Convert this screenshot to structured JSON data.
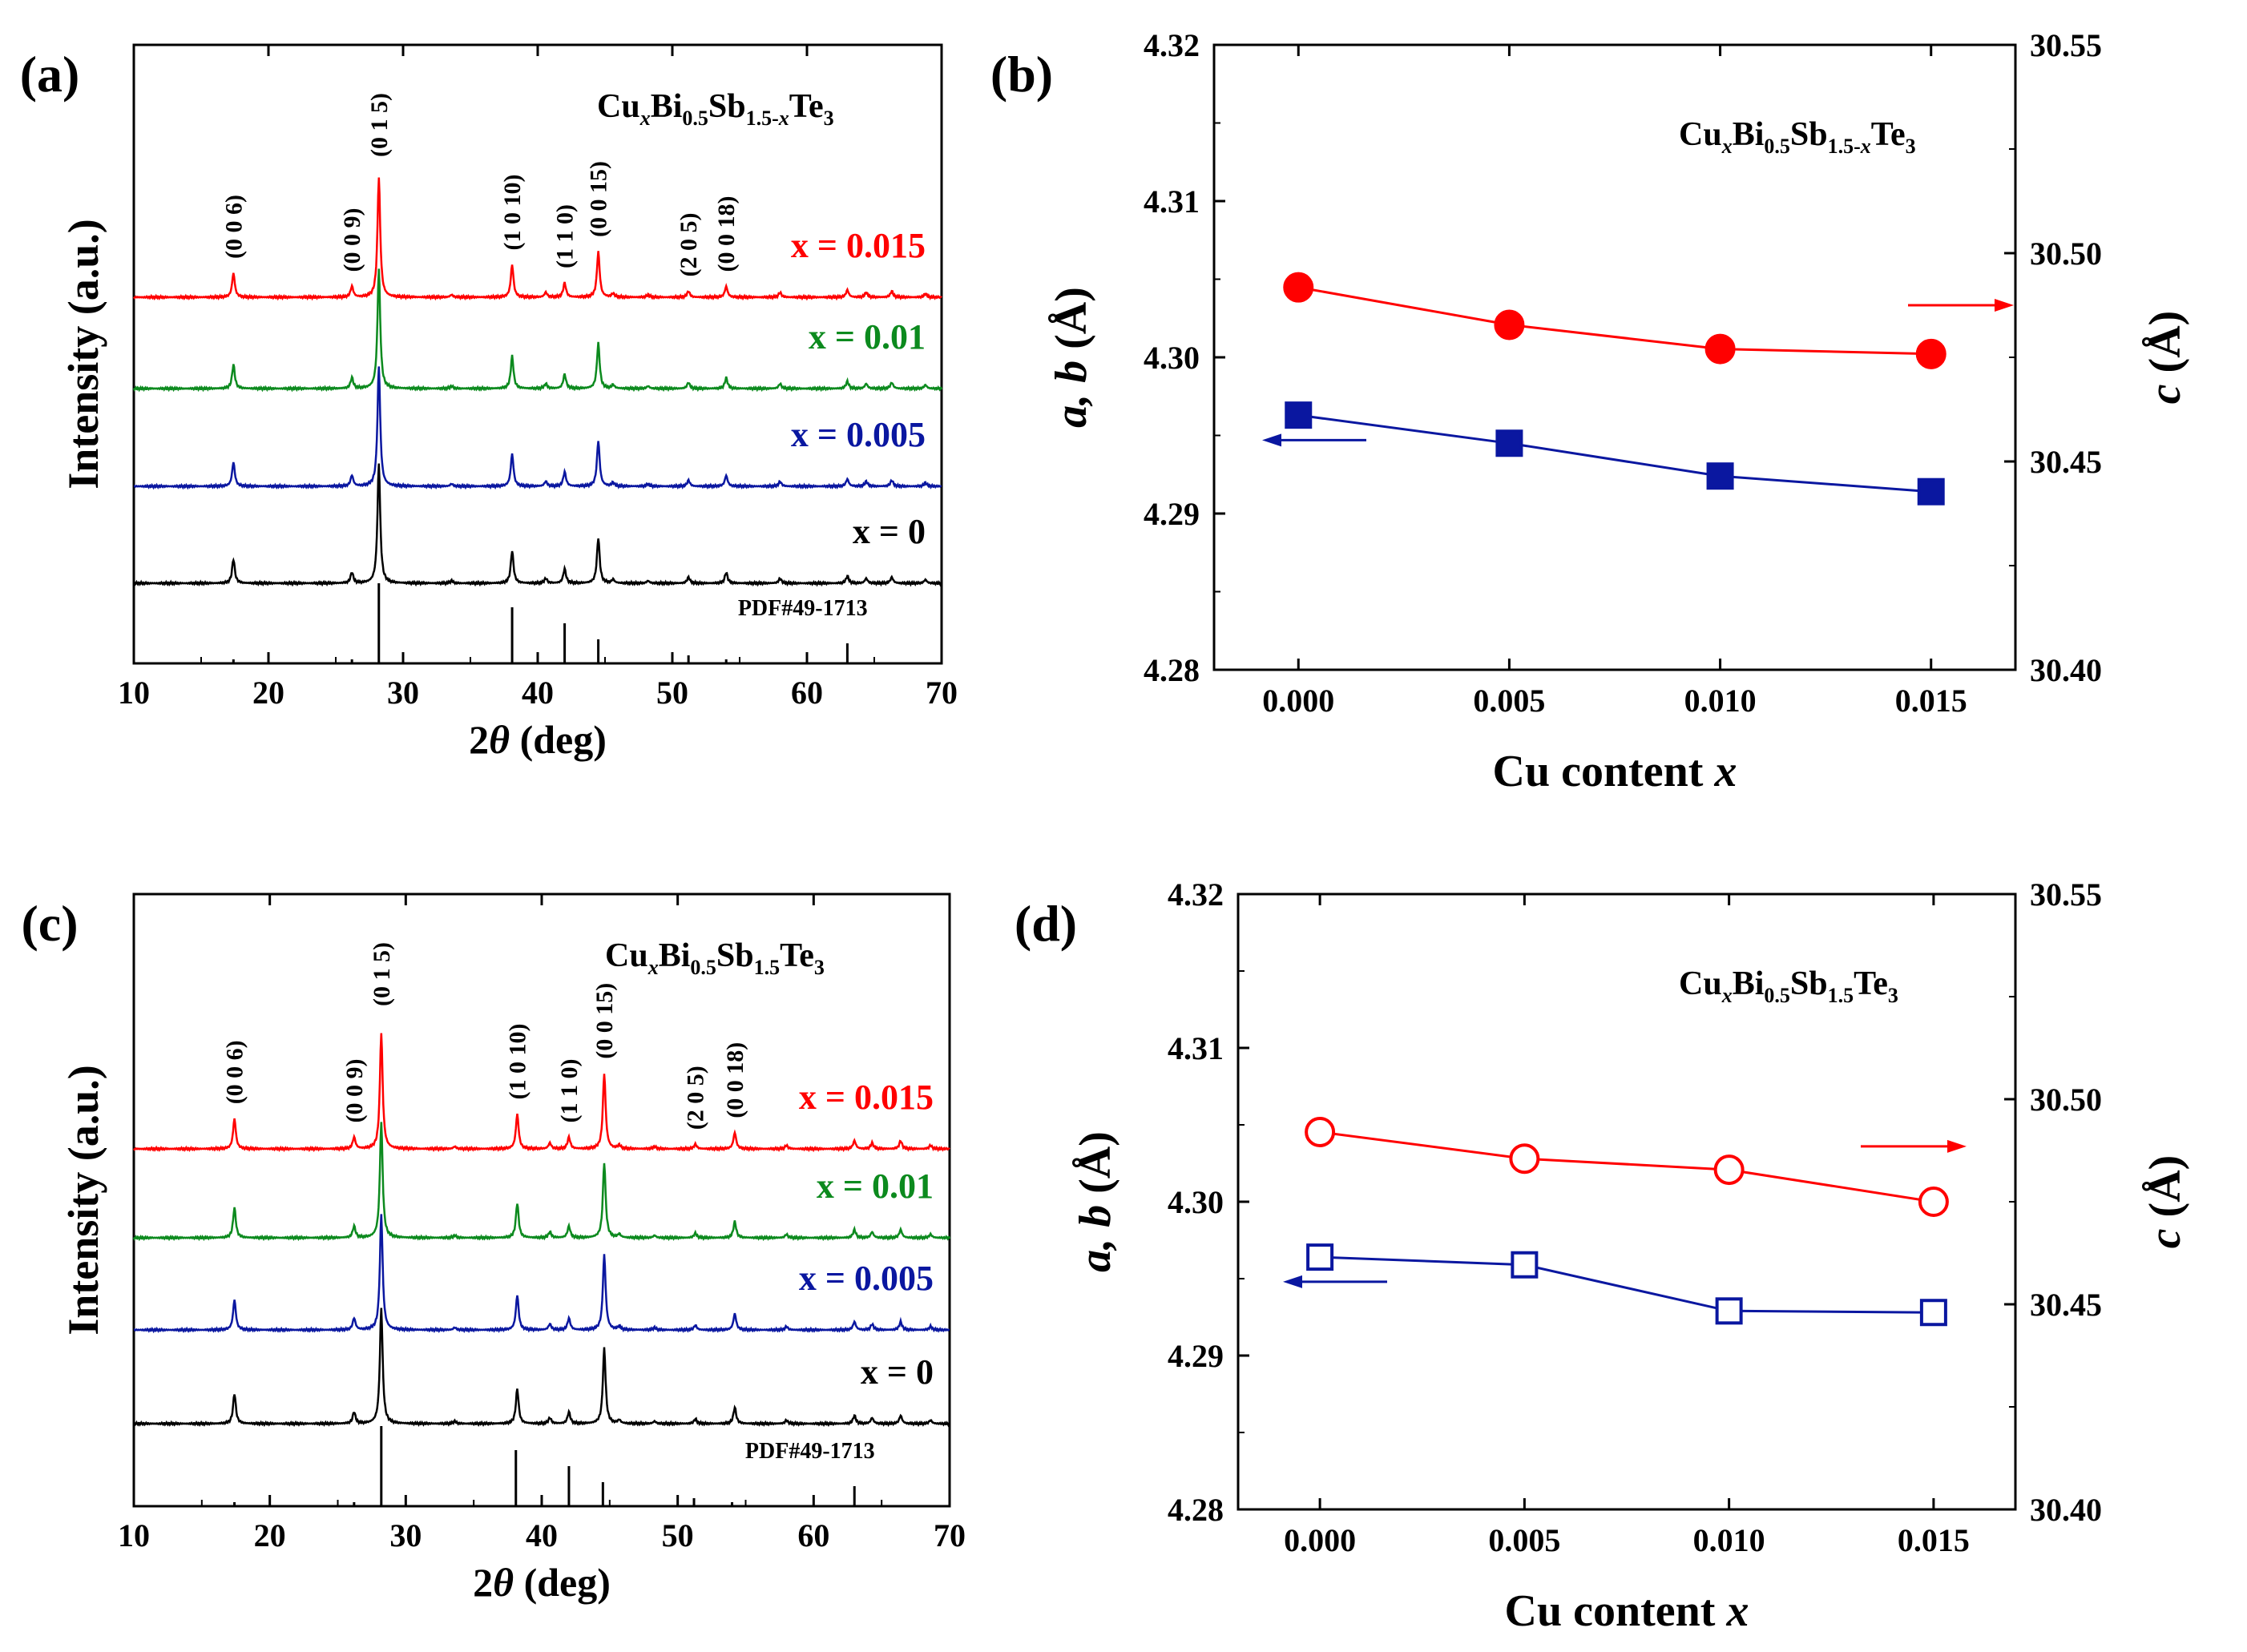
{
  "chart_data": [
    {
      "type": "line",
      "panel_label": "(a)",
      "title": {
        "base": "Cu",
        "x": "x",
        "mid1": "Bi",
        "s1": "0.5",
        "mid2": "Sb",
        "s2": "1.5-",
        "s2x": "x",
        "mid3": "Te",
        "s3": "3"
      },
      "xlabel": {
        "pre": "2",
        "theta": "θ",
        "post": " (deg)"
      },
      "ylabel": "Intensity (a.u.)",
      "xlim": [
        10,
        70
      ],
      "xticks": [
        10,
        20,
        30,
        40,
        50,
        60,
        70
      ],
      "x_values": [
        0,
        0.005,
        0.01,
        0.015
      ],
      "series_names": [
        "x = 0",
        "x = 0.005",
        "x = 0.01",
        "x = 0.015"
      ],
      "series_values": [
        "0",
        "0.005",
        "0.01",
        "0.015"
      ],
      "series_colors": [
        "#000000",
        "#0a17a0",
        "#0c8a1e",
        "#ff0000"
      ],
      "peaks": [
        {
          "pos": 17.4,
          "h": 0.2,
          "label": "(0 0 6)"
        },
        {
          "pos": 26.2,
          "h": 0.09,
          "label": "(0 0 9)"
        },
        {
          "pos": 28.2,
          "h": 1.0,
          "label": "(0 1 5)"
        },
        {
          "pos": 33.6,
          "h": 0.02
        },
        {
          "pos": 38.1,
          "h": 0.27,
          "label": "(1 0 10)"
        },
        {
          "pos": 40.6,
          "h": 0.04
        },
        {
          "pos": 42.0,
          "h": 0.12,
          "label": "(1 1 0)"
        },
        {
          "pos": 44.5,
          "h": 0.38,
          "label": "(0 0 15)"
        },
        {
          "pos": 45.6,
          "h": 0.03
        },
        {
          "pos": 48.2,
          "h": 0.02
        },
        {
          "pos": 51.2,
          "h": 0.05,
          "label": "(2 0 5)"
        },
        {
          "pos": 54.0,
          "h": 0.09,
          "label": "(0 0 18)"
        },
        {
          "pos": 58.0,
          "h": 0.04
        },
        {
          "pos": 63.0,
          "h": 0.06
        },
        {
          "pos": 64.4,
          "h": 0.04
        },
        {
          "pos": 66.3,
          "h": 0.05
        },
        {
          "pos": 68.8,
          "h": 0.03
        }
      ],
      "reference": {
        "label": "PDF#49-1713",
        "lines": [
          [
            17.4,
            0.05
          ],
          [
            26.2,
            0.05
          ],
          [
            28.2,
            1.0
          ],
          [
            38.1,
            0.7
          ],
          [
            42.0,
            0.5
          ],
          [
            44.5,
            0.3
          ],
          [
            51.2,
            0.1
          ],
          [
            54.0,
            0.05
          ],
          [
            63.0,
            0.25
          ]
        ]
      }
    },
    {
      "type": "scatter",
      "panel_label": "(b)",
      "title": {
        "base": "Cu",
        "x": "x",
        "mid1": "Bi",
        "s1": "0.5",
        "mid2": "Sb",
        "s2": "1.5-",
        "s2x": "x",
        "mid3": "Te",
        "s3": "3"
      },
      "xlabel": {
        "pre": "Cu content ",
        "x": "x"
      },
      "ylabel_left": {
        "pre": "a, b",
        "post": " (Å)"
      },
      "ylabel_right": {
        "pre": "c",
        "post": " (Å)"
      },
      "xlim": [
        -0.002,
        0.017
      ],
      "xticks": [
        "0.000",
        "0.005",
        "0.010",
        "0.015"
      ],
      "ylim_left": [
        4.28,
        4.32
      ],
      "yticks_left": [
        "4.28",
        "4.29",
        "4.30",
        "4.31",
        "4.32"
      ],
      "ylim_right": [
        30.4,
        30.55
      ],
      "yticks_right": [
        "30.40",
        "30.45",
        "30.50",
        "30.55"
      ],
      "x": [
        0,
        0.005,
        0.01,
        0.015
      ],
      "series": [
        {
          "name": "a, b",
          "axis": "left",
          "color": "#0a17a0",
          "marker": "square",
          "filled": true,
          "values": [
            4.2963,
            4.2945,
            4.2924,
            4.2914
          ]
        },
        {
          "name": "c",
          "axis": "right",
          "color": "#ff0000",
          "marker": "circle",
          "filled": true,
          "values": [
            30.4918,
            30.4828,
            30.477,
            30.4758
          ]
        }
      ]
    },
    {
      "type": "line",
      "panel_label": "(c)",
      "title": {
        "base": "Cu",
        "x": "x",
        "mid1": "Bi",
        "s1": "0.5",
        "mid2": "Sb",
        "s2": "1.5",
        "s2x": "",
        "mid3": "Te",
        "s3": "3"
      },
      "xlabel": {
        "pre": "2",
        "theta": "θ",
        "post": " (deg)"
      },
      "ylabel": "Intensity (a.u.)",
      "xlim": [
        10,
        70
      ],
      "xticks": [
        10,
        20,
        30,
        40,
        50,
        60,
        70
      ],
      "x_values": [
        0,
        0.005,
        0.01,
        0.015
      ],
      "series_names": [
        "x = 0",
        "x = 0.005",
        "x = 0.01",
        "x = 0.015"
      ],
      "series_values": [
        "0",
        "0.005",
        "0.01",
        "0.015"
      ],
      "series_colors": [
        "#000000",
        "#0a17a0",
        "#0c8a1e",
        "#ff0000"
      ],
      "peaks": [
        {
          "pos": 17.4,
          "h": 0.26,
          "label": "(0 0 6)"
        },
        {
          "pos": 26.2,
          "h": 0.1,
          "label": "(0 0 9)"
        },
        {
          "pos": 28.2,
          "h": 1.0,
          "label": "(0 1 5)"
        },
        {
          "pos": 33.6,
          "h": 0.02
        },
        {
          "pos": 38.2,
          "h": 0.3,
          "label": "(1 0 10)"
        },
        {
          "pos": 40.6,
          "h": 0.05
        },
        {
          "pos": 42.0,
          "h": 0.1,
          "label": "(1 1 0)"
        },
        {
          "pos": 44.6,
          "h": 0.65,
          "label": "(0 0 15)"
        },
        {
          "pos": 45.7,
          "h": 0.03
        },
        {
          "pos": 48.3,
          "h": 0.02
        },
        {
          "pos": 51.3,
          "h": 0.04,
          "label": "(2 0 5)"
        },
        {
          "pos": 54.2,
          "h": 0.14,
          "label": "(0 0 18)"
        },
        {
          "pos": 58.0,
          "h": 0.03
        },
        {
          "pos": 63.0,
          "h": 0.07
        },
        {
          "pos": 64.3,
          "h": 0.05
        },
        {
          "pos": 66.4,
          "h": 0.07
        },
        {
          "pos": 68.6,
          "h": 0.03
        }
      ],
      "reference": {
        "label": "PDF#49-1713",
        "lines": [
          [
            17.4,
            0.05
          ],
          [
            26.2,
            0.05
          ],
          [
            28.2,
            1.0
          ],
          [
            38.1,
            0.7
          ],
          [
            42.0,
            0.5
          ],
          [
            44.5,
            0.3
          ],
          [
            51.2,
            0.1
          ],
          [
            54.0,
            0.05
          ],
          [
            63.0,
            0.25
          ]
        ]
      }
    },
    {
      "type": "scatter",
      "panel_label": "(d)",
      "title": {
        "base": "Cu",
        "x": "x",
        "mid1": "Bi",
        "s1": "0.5",
        "mid2": "Sb",
        "s2": "1.5",
        "s2x": "",
        "mid3": "Te",
        "s3": "3"
      },
      "xlabel": {
        "pre": "Cu content ",
        "x": "x"
      },
      "ylabel_left": {
        "pre": "a, b",
        "post": " (Å)"
      },
      "ylabel_right": {
        "pre": "c",
        "post": " (Å)"
      },
      "xlim": [
        -0.002,
        0.017
      ],
      "xticks": [
        "0.000",
        "0.005",
        "0.010",
        "0.015"
      ],
      "ylim_left": [
        4.28,
        4.32
      ],
      "yticks_left": [
        "4.28",
        "4.29",
        "4.30",
        "4.31",
        "4.32"
      ],
      "ylim_right": [
        30.4,
        30.55
      ],
      "yticks_right": [
        "30.40",
        "30.45",
        "30.50",
        "30.55"
      ],
      "x": [
        0,
        0.005,
        0.01,
        0.015
      ],
      "series": [
        {
          "name": "a, b",
          "axis": "left",
          "color": "#0a17a0",
          "marker": "square",
          "filled": false,
          "values": [
            4.2964,
            4.2959,
            4.2929,
            4.2928
          ]
        },
        {
          "name": "c",
          "axis": "right",
          "color": "#ff0000",
          "marker": "circle",
          "filled": false,
          "values": [
            30.492,
            30.4855,
            30.4828,
            30.475
          ]
        }
      ]
    }
  ]
}
